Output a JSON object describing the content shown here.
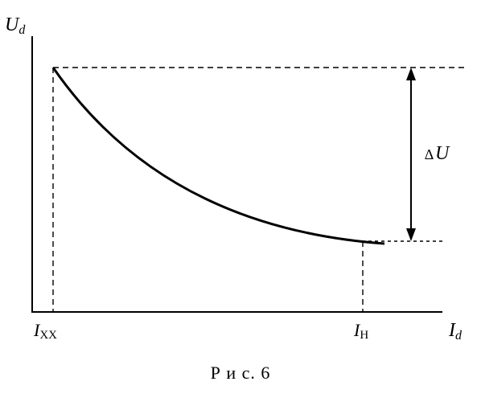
{
  "axes": {
    "y_symbol": "U",
    "y_subscript": "d",
    "x_symbol": "I",
    "x_subscript": "d"
  },
  "markers": {
    "ixx_symbol": "I",
    "ixx_subscript": "XX",
    "in_symbol": "I",
    "in_subscript": "Н"
  },
  "delta": {
    "delta_sign": "∆",
    "symbol": "U"
  },
  "caption": "Р и с. 6"
}
